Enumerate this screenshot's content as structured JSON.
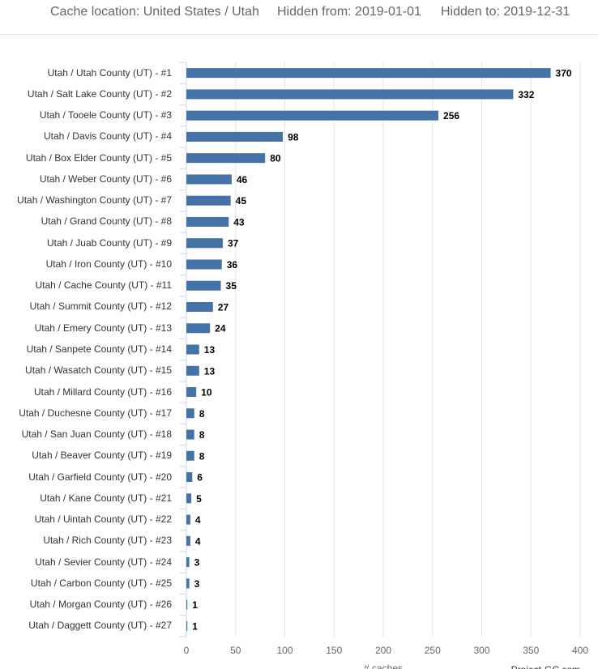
{
  "header": {
    "filters": [
      "Cache location: United States / Utah",
      "Hidden from: 2019-01-01",
      "Hidden to: 2019-12-31"
    ]
  },
  "chart_data": {
    "type": "bar",
    "orientation": "horizontal",
    "categories": [
      "Utah / Utah County (UT) - #1",
      "Utah / Salt Lake County (UT) - #2",
      "Utah / Tooele County (UT) - #3",
      "Utah / Davis County (UT) - #4",
      "Utah / Box Elder County (UT) - #5",
      "Utah / Weber County (UT) - #6",
      "Utah / Washington County (UT) - #7",
      "Utah / Grand County (UT) - #8",
      "Utah / Juab County (UT) - #9",
      "Utah / Iron County (UT) - #10",
      "Utah / Cache County (UT) - #11",
      "Utah / Summit County (UT) - #12",
      "Utah / Emery County (UT) - #13",
      "Utah / Sanpete County (UT) - #14",
      "Utah / Wasatch County (UT) - #15",
      "Utah / Millard County (UT) - #16",
      "Utah / Duchesne County (UT) - #17",
      "Utah / San Juan County (UT) - #18",
      "Utah / Beaver County (UT) - #19",
      "Utah / Garfield County (UT) - #20",
      "Utah / Kane County (UT) - #21",
      "Utah / Uintah County (UT) - #22",
      "Utah / Rich County (UT) - #23",
      "Utah / Sevier County (UT) - #24",
      "Utah / Carbon County (UT) - #25",
      "Utah / Morgan County (UT) - #26",
      "Utah / Daggett County (UT) - #27"
    ],
    "values": [
      370,
      332,
      256,
      98,
      80,
      46,
      45,
      43,
      37,
      36,
      35,
      27,
      24,
      13,
      13,
      10,
      8,
      8,
      8,
      6,
      5,
      4,
      4,
      3,
      3,
      1,
      1
    ],
    "color": "#4572a7",
    "xlabel": "# caches",
    "credit": "Project-GC.com",
    "xlim": [
      0,
      400
    ],
    "xticks": [
      0,
      50,
      100,
      150,
      200,
      250,
      300,
      350,
      400
    ],
    "grid": true
  }
}
